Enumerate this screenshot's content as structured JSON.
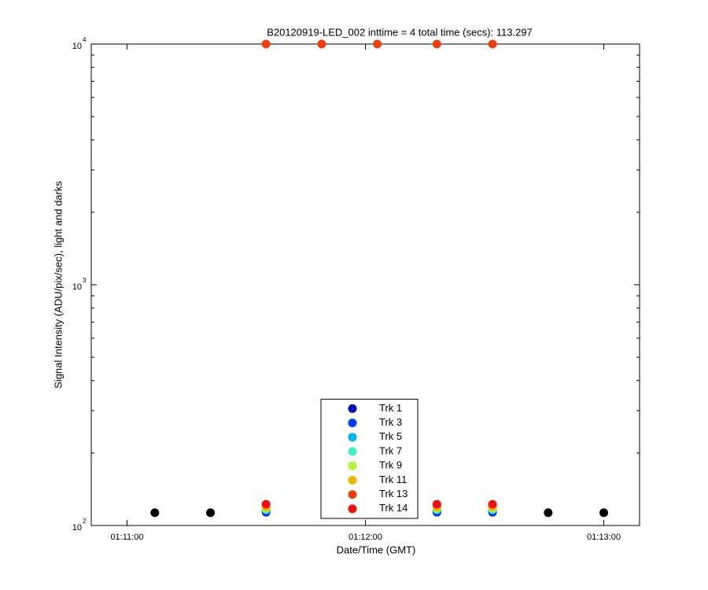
{
  "chart_data": {
    "type": "scatter",
    "title": "B20120919-LED_002 inttime = 4 total time (secs): 113.297",
    "xlabel": "Date/Time (GMT)",
    "ylabel": "Signal Intensity (ADU/pix/sec), light and darks",
    "x": [
      "01:11:07",
      "01:11:21",
      "01:11:35",
      "01:11:49",
      "01:12:03",
      "01:12:18",
      "01:12:32",
      "01:12:46",
      "01:13:00"
    ],
    "xlim": [
      "01:10:51",
      "01:13:09"
    ],
    "xticks": [
      "01:11:00",
      "01:12:00",
      "01:13:00"
    ],
    "ylim": [
      100,
      10000
    ],
    "yscale": "log",
    "yticks": [
      {
        "value": 100,
        "label": "10",
        "exponent": "2"
      },
      {
        "value": 1000,
        "label": "10",
        "exponent": "3"
      },
      {
        "value": 10000,
        "label": "10",
        "exponent": "4"
      }
    ],
    "minor_yticks": [
      200,
      300,
      400,
      500,
      600,
      700,
      800,
      900,
      2000,
      3000,
      4000,
      5000,
      6000,
      7000,
      8000,
      9000
    ],
    "legend": "south",
    "series": [
      {
        "color": "#000000",
        "values": [
          113,
          113,
          null,
          null,
          null,
          null,
          null,
          113,
          113
        ]
      },
      {
        "name": "Trk 1",
        "color": "#0010b0",
        "values": [
          null,
          null,
          113.5,
          null,
          null,
          113.5,
          113.5,
          null,
          null
        ]
      },
      {
        "name": "Trk 3",
        "color": "#0040f0",
        "values": [
          null,
          null,
          114.5,
          null,
          null,
          114.5,
          114.5,
          null,
          null
        ]
      },
      {
        "name": "Trk 5",
        "color": "#00b4f0",
        "values": [
          null,
          null,
          116,
          null,
          null,
          116,
          116,
          null,
          null
        ]
      },
      {
        "name": "Trk 7",
        "color": "#40f0c0",
        "values": [
          null,
          null,
          117,
          null,
          null,
          117,
          117,
          null,
          null
        ]
      },
      {
        "name": "Trk 9",
        "color": "#b4f040",
        "values": [
          null,
          null,
          118,
          null,
          null,
          118,
          118,
          null,
          null
        ]
      },
      {
        "name": "Trk 11",
        "color": "#f0b400",
        "values": [
          null,
          null,
          119.5,
          null,
          null,
          119.5,
          119.5,
          null,
          null
        ]
      },
      {
        "name": "Trk 13",
        "color": "#e84010",
        "values": [
          null,
          null,
          10000,
          10000,
          10000,
          10000,
          10000,
          null,
          null
        ]
      },
      {
        "name": "Trk 14",
        "color": "#f01010",
        "values": [
          null,
          null,
          122.5,
          null,
          null,
          122.5,
          122.5,
          null,
          null
        ]
      }
    ]
  }
}
